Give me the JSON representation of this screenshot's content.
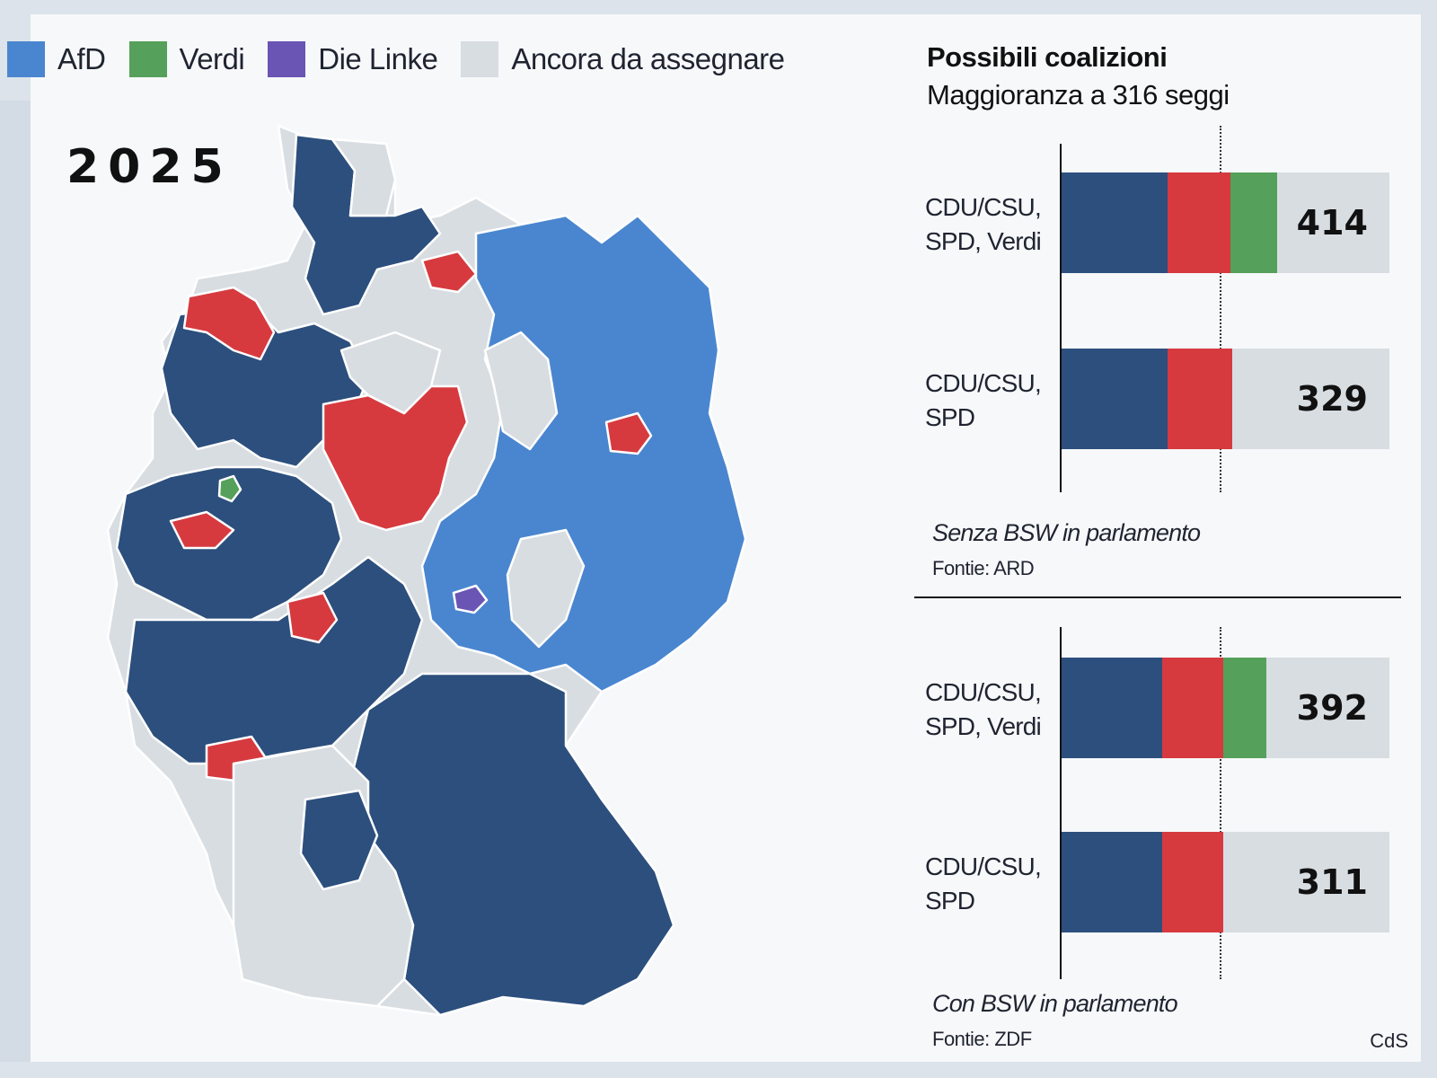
{
  "legend": {
    "items": [
      {
        "label": "AfD",
        "color": "#4a86cf"
      },
      {
        "label": "Verdi",
        "color": "#55a05a"
      },
      {
        "label": "Die Linke",
        "color": "#6a54b4"
      },
      {
        "label": "Ancora da assegnare",
        "color": "#d8dde2"
      }
    ]
  },
  "map": {
    "year": "2025",
    "colors": {
      "cdu": "#2c4f7d",
      "afd": "#4a86cf",
      "spd": "#d63a3f",
      "verdi": "#55a05a",
      "linke": "#6a54b4",
      "unassigned": "#d8dde2"
    }
  },
  "sidebar": {
    "title": "Possibili coalizioni",
    "subtitle": "Maggioranza a 316 seggi"
  },
  "chart_data": {
    "type": "bar",
    "majority": 316,
    "groups": [
      {
        "note": "Senza BSW in parlamento",
        "source": "Fontie: ARD",
        "bars": [
          {
            "label_line1": "CDU/CSU,",
            "label_line2": "SPD, Verdi",
            "total": "414",
            "segments": [
              {
                "party": "CDU/CSU",
                "color": "#2c4f7d"
              },
              {
                "party": "SPD",
                "color": "#d63a3f"
              },
              {
                "party": "Verdi",
                "color": "#55a05a"
              }
            ]
          },
          {
            "label_line1": "CDU/CSU,",
            "label_line2": "SPD",
            "total": "329",
            "segments": [
              {
                "party": "CDU/CSU",
                "color": "#2c4f7d"
              },
              {
                "party": "SPD",
                "color": "#d63a3f"
              }
            ]
          }
        ]
      },
      {
        "note": "Con BSW in parlamento",
        "source": "Fontie: ZDF",
        "bars": [
          {
            "label_line1": "CDU/CSU,",
            "label_line2": "SPD, Verdi",
            "total": "392",
            "segments": [
              {
                "party": "CDU/CSU",
                "color": "#2c4f7d"
              },
              {
                "party": "SPD",
                "color": "#d63a3f"
              },
              {
                "party": "Verdi",
                "color": "#55a05a"
              }
            ]
          },
          {
            "label_line1": "CDU/CSU,",
            "label_line2": "SPD",
            "total": "311",
            "segments": [
              {
                "party": "CDU/CSU",
                "color": "#2c4f7d"
              },
              {
                "party": "SPD",
                "color": "#d63a3f"
              }
            ]
          }
        ]
      }
    ]
  },
  "credit": "CdS"
}
